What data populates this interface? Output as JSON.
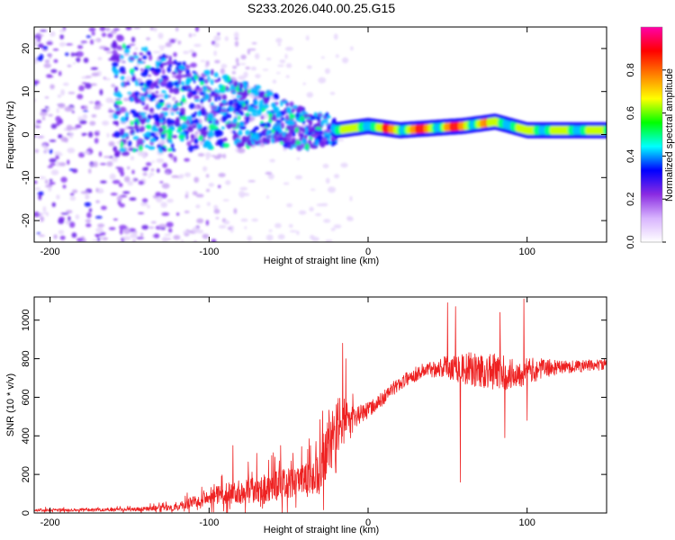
{
  "title": "S233.2026.040.00.25.G15",
  "chart_data": [
    {
      "type": "heatmap",
      "name": "spectrogram",
      "xlabel": "Height of straight line (km)",
      "ylabel": "Frequency (Hz)",
      "xlim": [
        -210,
        150
      ],
      "ylim": [
        -25,
        25
      ],
      "xticks": [
        -200,
        -100,
        0,
        100
      ],
      "xtick_labels": [
        "-200",
        "-100",
        "0",
        "100"
      ],
      "yticks": [
        -20,
        -10,
        0,
        10,
        20
      ],
      "ytick_labels": [
        "-20",
        "-10",
        "0",
        "10",
        "20"
      ],
      "colorbar": {
        "label": "Normalized spectral amplitude",
        "ticks": [
          0.0,
          0.2,
          0.4,
          0.6,
          0.8
        ],
        "tick_labels": [
          "0.0",
          "0.2",
          "0.4",
          "0.6",
          "0.8"
        ],
        "colors": [
          "#ffffff",
          "#d8b4fe",
          "#8a2be2",
          "#0000ff",
          "#00ffff",
          "#00ff00",
          "#ffff00",
          "#ff8000",
          "#ff0000",
          "#ff00aa"
        ]
      },
      "ridge": [
        {
          "x": -150,
          "y": 11
        },
        {
          "x": -120,
          "y": 9
        },
        {
          "x": -90,
          "y": 7
        },
        {
          "x": -60,
          "y": 5
        },
        {
          "x": -40,
          "y": 2
        },
        {
          "x": -25,
          "y": 2
        },
        {
          "x": -20,
          "y": 1
        },
        {
          "x": 0,
          "y": 2
        },
        {
          "x": 20,
          "y": 1
        },
        {
          "x": 60,
          "y": 2
        },
        {
          "x": 80,
          "y": 3
        },
        {
          "x": 100,
          "y": 1
        },
        {
          "x": 150,
          "y": 1
        }
      ]
    },
    {
      "type": "line",
      "name": "snr",
      "xlabel": "Height of straight line (km)",
      "ylabel": "SNR (10 * v/v)",
      "xlim": [
        -210,
        150
      ],
      "ylim": [
        0,
        1120
      ],
      "xticks": [
        -200,
        -100,
        0,
        100
      ],
      "xtick_labels": [
        "-200",
        "-100",
        "0",
        "100"
      ],
      "yticks": [
        0,
        200,
        400,
        600,
        800,
        1000
      ],
      "ytick_labels": [
        "0",
        "200",
        "400",
        "600",
        "800",
        "1000"
      ],
      "color": "#ee2222",
      "envelope": [
        {
          "x": -210,
          "y": 15
        },
        {
          "x": -150,
          "y": 18
        },
        {
          "x": -120,
          "y": 30
        },
        {
          "x": -100,
          "y": 90
        },
        {
          "x": -80,
          "y": 110
        },
        {
          "x": -60,
          "y": 140
        },
        {
          "x": -40,
          "y": 160
        },
        {
          "x": -30,
          "y": 220
        },
        {
          "x": -25,
          "y": 320
        },
        {
          "x": -20,
          "y": 430
        },
        {
          "x": -15,
          "y": 480
        },
        {
          "x": -5,
          "y": 510
        },
        {
          "x": 5,
          "y": 560
        },
        {
          "x": 15,
          "y": 640
        },
        {
          "x": 25,
          "y": 700
        },
        {
          "x": 35,
          "y": 740
        },
        {
          "x": 50,
          "y": 760
        },
        {
          "x": 70,
          "y": 740
        },
        {
          "x": 90,
          "y": 720
        },
        {
          "x": 110,
          "y": 750
        },
        {
          "x": 130,
          "y": 760
        },
        {
          "x": 150,
          "y": 770
        }
      ],
      "noise": [
        {
          "x": -210,
          "a": 10
        },
        {
          "x": -150,
          "a": 12
        },
        {
          "x": -120,
          "a": 25
        },
        {
          "x": -100,
          "a": 60
        },
        {
          "x": -80,
          "a": 90
        },
        {
          "x": -60,
          "a": 110
        },
        {
          "x": -40,
          "a": 130
        },
        {
          "x": -25,
          "a": 200
        },
        {
          "x": -20,
          "a": 250
        },
        {
          "x": -10,
          "a": 80
        },
        {
          "x": 0,
          "a": 60
        },
        {
          "x": 20,
          "a": 50
        },
        {
          "x": 40,
          "a": 60
        },
        {
          "x": 60,
          "a": 120
        },
        {
          "x": 80,
          "a": 140
        },
        {
          "x": 100,
          "a": 100
        },
        {
          "x": 120,
          "a": 50
        },
        {
          "x": 150,
          "a": 40
        }
      ],
      "spikes": [
        {
          "x": -85,
          "y": 350
        },
        {
          "x": -70,
          "y": 310
        },
        {
          "x": -55,
          "y": 350
        },
        {
          "x": -38,
          "y": 330
        },
        {
          "x": -16,
          "y": 880
        },
        {
          "x": -14,
          "y": 800
        },
        {
          "x": 50,
          "y": 1090
        },
        {
          "x": 55,
          "y": 1070
        },
        {
          "x": 58,
          "y": 160
        },
        {
          "x": 83,
          "y": 1040
        },
        {
          "x": 86,
          "y": 390
        },
        {
          "x": 98,
          "y": 1110
        },
        {
          "x": 100,
          "y": 480
        }
      ]
    }
  ]
}
